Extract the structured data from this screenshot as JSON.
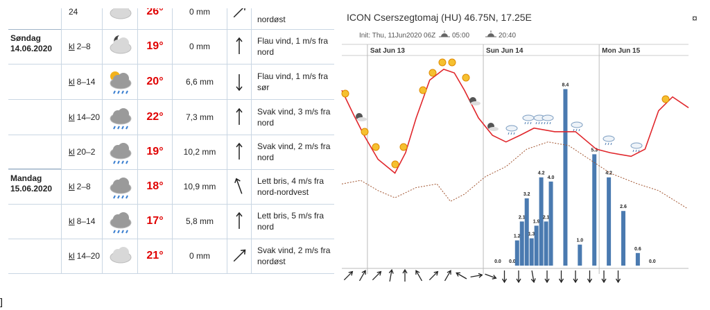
{
  "table": {
    "rows": [
      {
        "time": "24",
        "temp": "26°",
        "precip": "0 mm",
        "wind": "nordøst"
      },
      {
        "day": "Søndag",
        "date": "14.06.2020",
        "time_prefix": "kl",
        "time": "2–8",
        "temp": "19°",
        "precip": "0 mm",
        "wind": "Flau vind, 1 m/s fra nord"
      },
      {
        "time_prefix": "kl",
        "time": "8–14",
        "temp": "20°",
        "precip": "6,6 mm",
        "wind": "Flau vind, 1 m/s fra sør"
      },
      {
        "time_prefix": "kl",
        "time": "14–20",
        "temp": "22°",
        "precip": "7,3 mm",
        "wind": "Svak vind, 3 m/s fra nord"
      },
      {
        "time_prefix": "kl",
        "time": "20–2",
        "temp": "19°",
        "precip": "10,2 mm",
        "wind": "Svak vind, 2 m/s fra nord"
      },
      {
        "day": "Mandag",
        "date": "15.06.2020",
        "time_prefix": "kl",
        "time": "2–8",
        "temp": "18°",
        "precip": "10,9 mm",
        "wind": "Lett bris, 4 m/s fra nord-nordvest"
      },
      {
        "time_prefix": "kl",
        "time": "8–14",
        "temp": "17°",
        "precip": "5,8 mm",
        "wind": "Lett bris, 5 m/s fra nord"
      },
      {
        "time_prefix": "kl",
        "time": "14–20",
        "temp": "21°",
        "precip": "0 mm",
        "wind": "Svak vind, 2 m/s fra nordøst"
      }
    ],
    "corner_mark": "]"
  },
  "chart_data": {
    "type": "bar",
    "title": "ICON Cserszegtomaj (HU) 46.75N, 17.25E",
    "init": "Init: Thu, 11Jun2020 06Z",
    "sunrise": "05:00",
    "sunset": "20:40",
    "corner_symbol": "¤",
    "xlim": [
      -5.3,
      66.5
    ],
    "xticks": [
      {
        "value": 0,
        "label": "Sat Jun 13"
      },
      {
        "value": 24,
        "label": "Sun Jun 14"
      },
      {
        "value": 48,
        "label": "Mon Jun 15"
      }
    ],
    "ylim": [
      0,
      10
    ],
    "color": "#4a7ab0",
    "x": [
      27,
      30,
      31,
      32,
      33,
      34,
      35,
      36,
      37,
      38,
      41,
      44,
      47,
      50,
      53,
      56,
      59
    ],
    "values": [
      0,
      0,
      1.2,
      2.1,
      3.2,
      1.3,
      1.9,
      4.2,
      2.1,
      4.0,
      8.4,
      1.0,
      5.3,
      4.2,
      2.6,
      0.6,
      0
    ],
    "value_labels": [
      "0.0",
      "0.0",
      "1.2",
      "2.1",
      "3.2",
      "1.3",
      "1.9",
      "4.2",
      "2.1",
      "4.0",
      "8.4",
      "1.0",
      "5.3",
      "4.2",
      "2.6",
      "0.6",
      "0.0"
    ],
    "y2lim": [
      0,
      35
    ],
    "lines": [
      {
        "color": "#e0262b",
        "dashed": false,
        "x": [
          -5.3,
          -2.9,
          -0.7,
          2.2,
          5.7,
          7.9,
          10.1,
          12.9,
          15.8,
          18,
          20.1,
          23,
          25.9,
          28.7,
          31.6,
          34.5,
          38.8,
          43.1,
          47.4,
          50.3,
          54.6,
          57.5,
          60.3,
          63.2,
          66.5
        ],
        "values": [
          29.2,
          25.2,
          21.7,
          17.7,
          15.4,
          18.8,
          24.6,
          30.9,
          32.7,
          32.1,
          29.2,
          24.6,
          21.7,
          20.6,
          21.7,
          22.9,
          22.3,
          22.3,
          19.4,
          18.8,
          18.2,
          19.4,
          25.8,
          28.1,
          26.3
        ]
      },
      {
        "color": "#a0522d",
        "dashed": true,
        "x": [
          -5.3,
          -1.4,
          2.2,
          5.7,
          10.1,
          14.4,
          17.2,
          20.1,
          24.4,
          28.7,
          33,
          37.4,
          41.7,
          46,
          50.3,
          56,
          60.3,
          66.1
        ],
        "values": [
          13.6,
          14.2,
          12.5,
          11.3,
          13.0,
          13.6,
          10.7,
          11.9,
          14.8,
          16.5,
          19.4,
          20.6,
          20.0,
          17.7,
          15.4,
          13.6,
          12.5,
          9.6
        ]
      }
    ]
  }
}
